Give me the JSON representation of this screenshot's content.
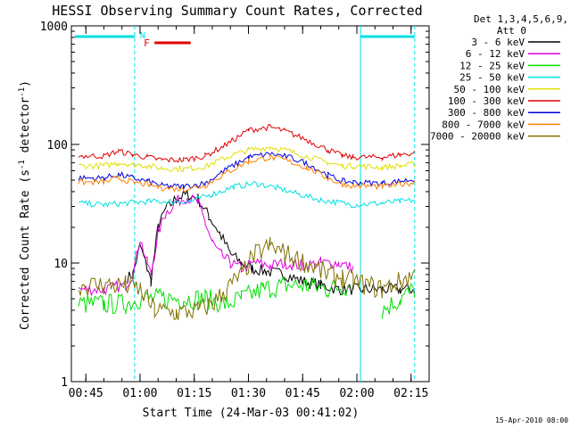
{
  "chart_data": {
    "type": "line",
    "title": "HESSI Observing Summary Count Rates, Corrected",
    "xlabel": "Start Time (24-Mar-03 00:41:02)",
    "ylabel_main": "Corrected Count Rate (s",
    "ylabel_sup1": "-1",
    "ylabel_mid": " detector",
    "ylabel_sup2": "-1",
    "ylabel_end": ")",
    "yscale": "log",
    "ylim": [
      1,
      1000
    ],
    "xlim": [
      "00:41",
      "02:20"
    ],
    "y_ticks": [
      {
        "value": 1,
        "label": "1"
      },
      {
        "value": 10,
        "label": "10"
      },
      {
        "value": 100,
        "label": "100"
      },
      {
        "value": 1000,
        "label": "1000"
      }
    ],
    "x_ticks": [
      {
        "value": 45,
        "label": "00:45"
      },
      {
        "value": 60,
        "label": "01:00"
      },
      {
        "value": 75,
        "label": "01:15"
      },
      {
        "value": 90,
        "label": "01:30"
      },
      {
        "value": 105,
        "label": "01:45"
      },
      {
        "value": 120,
        "label": "02:00"
      },
      {
        "value": 135,
        "label": "02:15"
      }
    ],
    "legend_header": [
      "Det 1,3,4,5,6,9,",
      "Att 0"
    ],
    "legend_placement": "right",
    "footer": "15-Apr-2010 08:00",
    "annotations": [
      {
        "text": "N",
        "color": "#00e0e0"
      },
      {
        "text": "F",
        "color": "#e00000"
      }
    ],
    "night_bars": [
      {
        "x0": 42,
        "x1": 58.5
      },
      {
        "x0": 121,
        "x1": 136
      }
    ],
    "flare_bar": {
      "x0": 64,
      "x1": 74
    },
    "dashed_lines": [
      58.5,
      136
    ],
    "solid_lines": [
      121
    ],
    "data_gaps": [
      [
        119,
        126
      ]
    ],
    "series": [
      {
        "name": "3 - 6 keV",
        "color": "#000000",
        "points": [
          [
            56.5,
            7.5
          ],
          [
            58,
            8
          ],
          [
            60,
            14
          ],
          [
            62,
            9
          ],
          [
            63,
            7
          ],
          [
            65,
            20
          ],
          [
            67,
            28
          ],
          [
            70,
            35
          ],
          [
            73,
            38
          ],
          [
            76,
            35
          ],
          [
            79,
            25
          ],
          [
            82,
            18
          ],
          [
            85,
            12
          ],
          [
            88,
            10
          ],
          [
            91,
            9
          ],
          [
            95,
            8.5
          ],
          [
            100,
            8
          ],
          [
            105,
            7
          ],
          [
            110,
            6.5
          ],
          [
            115,
            6
          ],
          [
            119,
            6
          ],
          [
            127,
            6
          ],
          [
            132,
            6
          ],
          [
            136,
            6
          ]
        ]
      },
      {
        "name": "6 - 12 keV",
        "color": "#e000e0",
        "points": [
          [
            43,
            6
          ],
          [
            50,
            6
          ],
          [
            56,
            6.5
          ],
          [
            58,
            8
          ],
          [
            60,
            16
          ],
          [
            62,
            10
          ],
          [
            63,
            8
          ],
          [
            65,
            18
          ],
          [
            67,
            26
          ],
          [
            70,
            33
          ],
          [
            73,
            36
          ],
          [
            76,
            32
          ],
          [
            78,
            22
          ],
          [
            80,
            15
          ],
          [
            82,
            12
          ],
          [
            85,
            10
          ],
          [
            88,
            9
          ],
          [
            92,
            10
          ],
          [
            96,
            9.5
          ],
          [
            100,
            10
          ],
          [
            105,
            9.5
          ],
          [
            110,
            10
          ],
          [
            115,
            10
          ],
          [
            119,
            9
          ]
        ]
      },
      {
        "name": "12 - 25 keV",
        "color": "#00e000",
        "points": [
          [
            43,
            4.5
          ],
          [
            50,
            4.5
          ],
          [
            56,
            4.5
          ],
          [
            60,
            5
          ],
          [
            66,
            5
          ],
          [
            72,
            5
          ],
          [
            78,
            5
          ],
          [
            84,
            4.5
          ],
          [
            88,
            5
          ],
          [
            94,
            6
          ],
          [
            100,
            6.5
          ],
          [
            106,
            6.5
          ],
          [
            112,
            6
          ],
          [
            118,
            6.5
          ],
          [
            127,
            4
          ],
          [
            132,
            5
          ],
          [
            136,
            6
          ]
        ]
      },
      {
        "name": "25 - 50 keV",
        "color": "#00e0e0",
        "points": [
          [
            43,
            32
          ],
          [
            50,
            31
          ],
          [
            56,
            32
          ],
          [
            62,
            33
          ],
          [
            68,
            33
          ],
          [
            74,
            33
          ],
          [
            80,
            38
          ],
          [
            86,
            44
          ],
          [
            92,
            47
          ],
          [
            98,
            43
          ],
          [
            104,
            38
          ],
          [
            110,
            34
          ],
          [
            116,
            32
          ],
          [
            119,
            31
          ],
          [
            127,
            32
          ],
          [
            132,
            33
          ],
          [
            136,
            34
          ]
        ]
      },
      {
        "name": "50 - 100 keV",
        "color": "#e0e000",
        "points": [
          [
            43,
            66
          ],
          [
            50,
            66
          ],
          [
            54,
            70
          ],
          [
            58,
            68
          ],
          [
            62,
            66
          ],
          [
            66,
            63
          ],
          [
            72,
            62
          ],
          [
            78,
            65
          ],
          [
            84,
            78
          ],
          [
            90,
            90
          ],
          [
            96,
            95
          ],
          [
            100,
            90
          ],
          [
            106,
            80
          ],
          [
            112,
            70
          ],
          [
            116,
            66
          ],
          [
            119,
            66
          ],
          [
            127,
            64
          ],
          [
            132,
            66
          ],
          [
            136,
            68
          ]
        ]
      },
      {
        "name": "100 - 300 keV",
        "color": "#e00000",
        "points": [
          [
            43,
            80
          ],
          [
            50,
            80
          ],
          [
            54,
            88
          ],
          [
            58,
            82
          ],
          [
            62,
            78
          ],
          [
            66,
            74
          ],
          [
            72,
            74
          ],
          [
            78,
            80
          ],
          [
            84,
            100
          ],
          [
            90,
            132
          ],
          [
            96,
            140
          ],
          [
            100,
            130
          ],
          [
            106,
            110
          ],
          [
            112,
            90
          ],
          [
            116,
            80
          ],
          [
            119,
            78
          ],
          [
            127,
            78
          ],
          [
            132,
            82
          ],
          [
            136,
            85
          ]
        ]
      },
      {
        "name": "300 - 800 keV",
        "color": "#0000e0",
        "points": [
          [
            43,
            52
          ],
          [
            50,
            52
          ],
          [
            54,
            56
          ],
          [
            58,
            52
          ],
          [
            62,
            49
          ],
          [
            66,
            45
          ],
          [
            72,
            44
          ],
          [
            78,
            47
          ],
          [
            84,
            62
          ],
          [
            90,
            78
          ],
          [
            96,
            83
          ],
          [
            100,
            80
          ],
          [
            106,
            70
          ],
          [
            112,
            55
          ],
          [
            116,
            49
          ],
          [
            119,
            48
          ],
          [
            127,
            47
          ],
          [
            132,
            49
          ],
          [
            136,
            51
          ]
        ]
      },
      {
        "name": "800 - 7000 keV",
        "color": "#ff8000",
        "points": [
          [
            43,
            48
          ],
          [
            50,
            48
          ],
          [
            54,
            52
          ],
          [
            58,
            48
          ],
          [
            62,
            46
          ],
          [
            66,
            43
          ],
          [
            72,
            42
          ],
          [
            78,
            45
          ],
          [
            84,
            58
          ],
          [
            90,
            72
          ],
          [
            96,
            78
          ],
          [
            100,
            74
          ],
          [
            106,
            64
          ],
          [
            112,
            52
          ],
          [
            116,
            46
          ],
          [
            119,
            45
          ],
          [
            127,
            44
          ],
          [
            132,
            46
          ],
          [
            136,
            48
          ]
        ]
      },
      {
        "name": "7000 - 20000 keV",
        "color": "#807000",
        "points": [
          [
            43,
            6.5
          ],
          [
            50,
            6.5
          ],
          [
            56,
            6.5
          ],
          [
            60,
            6
          ],
          [
            64,
            4
          ],
          [
            70,
            3.8
          ],
          [
            76,
            4
          ],
          [
            80,
            4.5
          ],
          [
            84,
            6
          ],
          [
            88,
            8
          ],
          [
            92,
            12
          ],
          [
            96,
            14
          ],
          [
            100,
            12
          ],
          [
            106,
            10
          ],
          [
            112,
            8
          ],
          [
            116,
            7.5
          ],
          [
            119,
            7
          ],
          [
            127,
            6
          ],
          [
            132,
            7
          ],
          [
            136,
            8
          ]
        ]
      }
    ]
  }
}
